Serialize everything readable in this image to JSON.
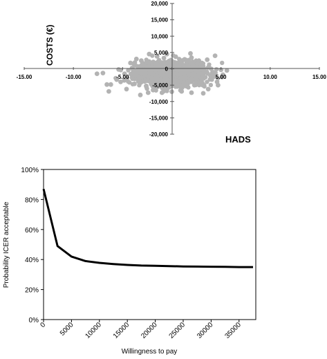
{
  "chart_data": [
    {
      "type": "scatter",
      "xlabel": "HADS",
      "ylabel": "COSTS (€)",
      "xlim": [
        -15,
        15
      ],
      "ylim": [
        -20000,
        20000
      ],
      "x_ticks": [
        "-15.00",
        "-10.00",
        "-5.00",
        "",
        "5.00",
        "10.00",
        "15.00"
      ],
      "y_ticks": [
        "20,000",
        "15,000",
        "10,000",
        "5,000",
        "0",
        "-5,000",
        "-10,000",
        "-15,000",
        "-20,000"
      ],
      "grid": false,
      "marker_color": "#b3b3b3",
      "cloud": {
        "description_center_x": 0,
        "center_y": -1500,
        "x_spread": 2.4,
        "y_spread": 1800,
        "points": [
          [
            -7.6,
            -1500
          ],
          [
            -7.0,
            -1300
          ],
          [
            -6.6,
            -4800
          ],
          [
            -6.4,
            -6900
          ],
          [
            -5.2,
            -4000
          ],
          [
            -4.6,
            -6200
          ],
          [
            -3.2,
            -8000
          ],
          [
            -2.4,
            -7300
          ],
          [
            -4.8,
            -1500
          ],
          [
            -4.2,
            1800
          ],
          [
            -3.6,
            3000
          ],
          [
            -3.1,
            2500
          ],
          [
            -2.3,
            4500
          ],
          [
            -1.5,
            3800
          ],
          [
            -0.8,
            3300
          ],
          [
            0.4,
            3700
          ],
          [
            1.3,
            2900
          ],
          [
            2.0,
            3400
          ],
          [
            2.6,
            1500
          ],
          [
            3.6,
            2800
          ],
          [
            4.4,
            4000
          ],
          [
            5.0,
            -300
          ],
          [
            5.1,
            -2500
          ],
          [
            4.7,
            -5000
          ],
          [
            3.7,
            -6200
          ],
          [
            3.2,
            -7500
          ],
          [
            2.0,
            -7300
          ],
          [
            1.0,
            -6900
          ],
          [
            0.0,
            -7000
          ],
          [
            -1.0,
            -7300
          ],
          [
            -1.9,
            -6500
          ],
          [
            -0.5,
            4500
          ],
          [
            1.9,
            4700
          ],
          [
            -6.2,
            -4800
          ],
          [
            -5.6,
            -3300
          ],
          [
            5.6,
            -500
          ],
          [
            5.2,
            -1800
          ],
          [
            -2.6,
            -5200
          ],
          [
            0.3,
            -5200
          ],
          [
            2.3,
            -5000
          ],
          [
            -3.0,
            -1400
          ],
          [
            -1.0,
            -1300
          ],
          [
            1.0,
            -1400
          ],
          [
            3.0,
            -1500
          ],
          [
            -2.0,
            -3000
          ],
          [
            0.0,
            -3200
          ],
          [
            2.0,
            -3100
          ],
          [
            -2.0,
            300
          ],
          [
            0.0,
            500
          ],
          [
            2.0,
            400
          ],
          [
            -4.0,
            -3000
          ],
          [
            4.0,
            -3000
          ],
          [
            -4.0,
            0
          ],
          [
            4.0,
            0
          ],
          [
            -1.0,
            1900
          ],
          [
            1.0,
            1800
          ],
          [
            3.0,
            1200
          ],
          [
            -3.0,
            1300
          ],
          [
            -5.4,
            -200
          ],
          [
            4.6,
            -4000
          ],
          [
            -0.2,
            -4600
          ],
          [
            -3.8,
            -4600
          ]
        ]
      }
    },
    {
      "type": "line",
      "xlabel": "Willingness to pay",
      "ylabel": "Probability ICER acceptable",
      "xlim": [
        0,
        38000
      ],
      "ylim": [
        0,
        100
      ],
      "x_ticks": [
        "0",
        "5000",
        "10000",
        "15000",
        "20000",
        "25000",
        "30000",
        "35000"
      ],
      "y_ticks": [
        "100%",
        "80%",
        "60%",
        "40%",
        "20%",
        "0%"
      ],
      "grid": false,
      "line_color": "#000000",
      "series": [
        {
          "x": [
            0,
            2500,
            5000,
            7500,
            10000,
            12500,
            15000,
            17500,
            20000,
            22500,
            25000,
            27500,
            30000,
            32500,
            35000,
            37500
          ],
          "y": [
            87,
            49,
            42,
            39,
            37.8,
            37,
            36.4,
            36,
            35.8,
            35.6,
            35.4,
            35.3,
            35.2,
            35.1,
            35.0,
            35.0
          ]
        }
      ]
    }
  ]
}
